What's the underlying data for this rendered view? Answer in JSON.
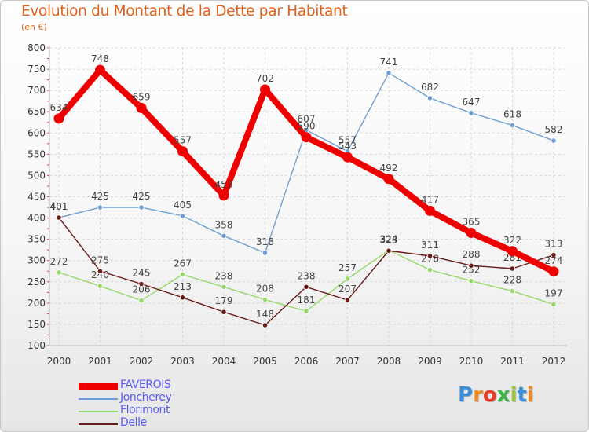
{
  "header": {
    "title": "Evolution du Montant de la Dette par Habitant",
    "unit": "(en €)"
  },
  "logo": {
    "text": "Proxiti",
    "colors": [
      "#3a8fd8",
      "#f08a1e",
      "#e83c2a",
      "#3ab54a",
      "#9bc53d",
      "#3a8fd8",
      "#f08a1e"
    ]
  },
  "chart_data": {
    "type": "line",
    "x": [
      "2000",
      "2001",
      "2002",
      "2003",
      "2004",
      "2005",
      "2006",
      "2007",
      "2008",
      "2009",
      "2010",
      "2011",
      "2012"
    ],
    "ylim": [
      100,
      800
    ],
    "yticks": [
      100,
      150,
      200,
      250,
      300,
      350,
      400,
      450,
      500,
      550,
      600,
      650,
      700,
      750,
      800
    ],
    "grid": true,
    "legend_position": "bottom-left",
    "series": [
      {
        "name": "FAVEROIS",
        "color": "#ee0000",
        "thick": true,
        "values": [
          634,
          748,
          659,
          557,
          453,
          702,
          590,
          543,
          492,
          417,
          365,
          322,
          274
        ]
      },
      {
        "name": "Joncherey",
        "color": "#6f9fd2",
        "thick": false,
        "values": [
          401,
          425,
          425,
          405,
          358,
          318,
          607,
          557,
          741,
          682,
          647,
          618,
          582
        ]
      },
      {
        "name": "Florimont",
        "color": "#96d86a",
        "thick": false,
        "values": [
          272,
          240,
          206,
          267,
          238,
          208,
          181,
          257,
          324,
          278,
          252,
          228,
          197
        ]
      },
      {
        "name": "Delle",
        "color": "#6b1a1a",
        "thick": false,
        "values": [
          401,
          275,
          245,
          213,
          179,
          148,
          238,
          207,
          323,
          311,
          288,
          281,
          313
        ]
      }
    ]
  }
}
